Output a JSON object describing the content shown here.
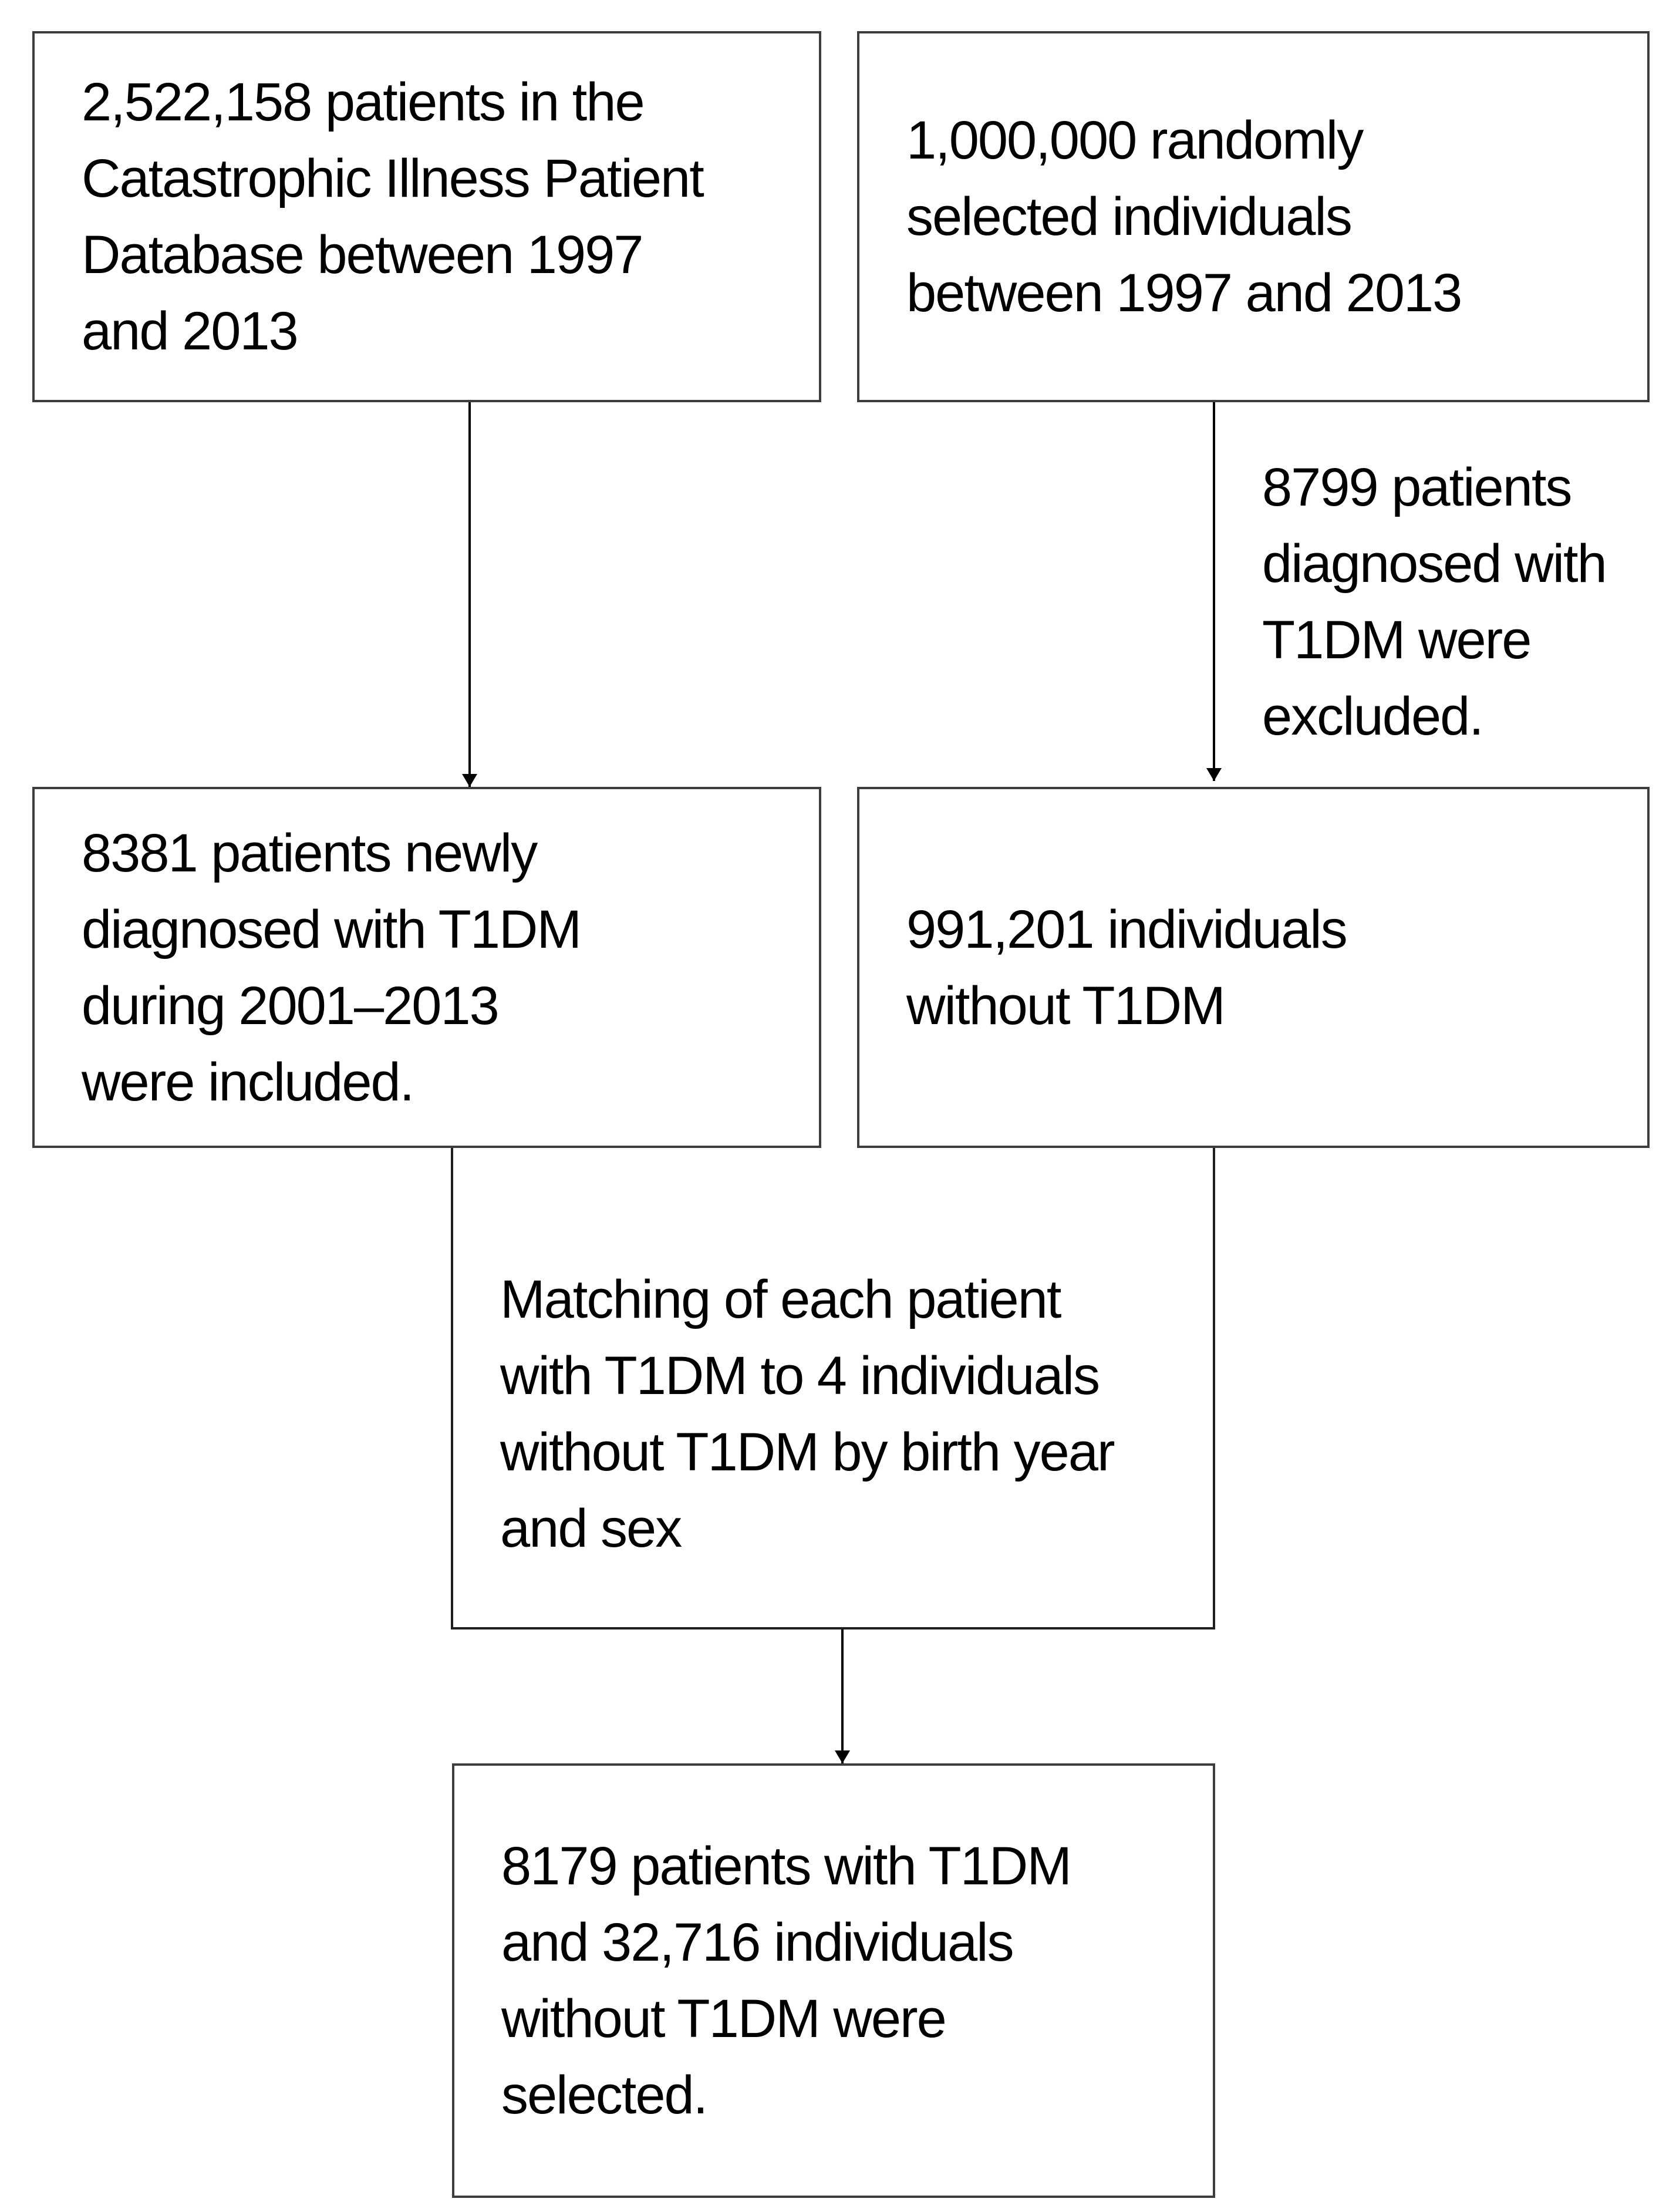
{
  "boxes": {
    "top_left": {
      "lines": [
        "2,522,158 patients in the",
        "Catastrophic Illness Patient",
        "Database between 1997",
        "and 2013"
      ]
    },
    "top_right": {
      "lines": [
        "1,000,000 randomly",
        "selected individuals",
        "between 1997 and 2013"
      ]
    },
    "exclusion_note": {
      "lines": [
        "8799 patients",
        "diagnosed with",
        "T1DM were",
        "excluded."
      ]
    },
    "mid_left": {
      "lines": [
        "8381 patients newly",
        "diagnosed with T1DM",
        "during 2001–2013",
        "were included."
      ]
    },
    "mid_right": {
      "lines": [
        "991,201 individuals",
        "without T1DM"
      ]
    },
    "matching": {
      "lines": [
        "Matching of each patient",
        "with T1DM to 4 individuals",
        "without T1DM by birth year",
        "and sex"
      ]
    },
    "final": {
      "lines": [
        "8179 patients with T1DM",
        "and 32,716 individuals",
        "without T1DM were",
        "selected."
      ]
    }
  },
  "colors": {
    "background": "#ffffff",
    "box_border": "#3d3d3d",
    "connector": "#000000",
    "text": "#000000"
  }
}
